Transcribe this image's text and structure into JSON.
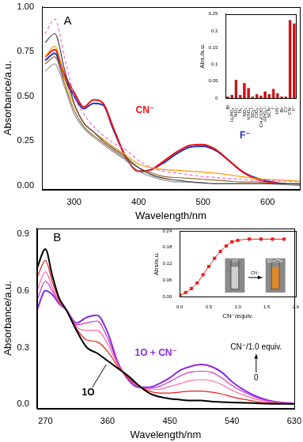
{
  "chart_data": [
    {
      "type": "line",
      "annotations": [
        "A"
      ],
      "xlabel": "Wavelength/nm",
      "ylabel": "Absorbance/a.u.",
      "x": [
        255,
        270,
        285,
        300,
        315,
        330,
        345,
        360,
        380,
        400,
        420,
        440,
        460,
        480,
        500,
        520,
        540,
        560,
        580,
        600,
        625,
        650
      ],
      "series": [
        {
          "color": "#ff66cc",
          "line_style": "dashed",
          "values": [
            0.85,
            0.93,
            0.72,
            0.5,
            0.4,
            0.33,
            0.28,
            0.24,
            0.2,
            0.14,
            0.1,
            0.08,
            0.07,
            0.06,
            0.05,
            0.045,
            0.04,
            0.035,
            0.03,
            0.03,
            0.025,
            0.02
          ]
        },
        {
          "color": "#444444",
          "values": [
            0.8,
            0.85,
            0.65,
            0.46,
            0.35,
            0.3,
            0.25,
            0.21,
            0.16,
            0.1,
            0.06,
            0.04,
            0.03,
            0.02,
            0.015,
            0.01,
            0.01,
            0.01,
            0.01,
            0.01,
            0.01,
            0.01
          ]
        },
        {
          "color": "#ff9900",
          "values": [
            0.72,
            0.78,
            0.6,
            0.45,
            0.35,
            0.3,
            0.26,
            0.22,
            0.17,
            0.12,
            0.1,
            0.09,
            0.085,
            0.08,
            0.075,
            0.07,
            0.06,
            0.05,
            0.04,
            0.035,
            0.03,
            0.025
          ]
        },
        {
          "color": "#996633",
          "values": [
            0.68,
            0.72,
            0.57,
            0.42,
            0.33,
            0.28,
            0.24,
            0.2,
            0.15,
            0.1,
            0.07,
            0.05,
            0.045,
            0.04,
            0.035,
            0.03,
            0.025,
            0.02,
            0.02,
            0.015,
            0.01,
            0.01
          ]
        },
        {
          "color": "#999999",
          "values": [
            0.64,
            0.68,
            0.55,
            0.4,
            0.32,
            0.27,
            0.23,
            0.19,
            0.14,
            0.08,
            0.05,
            0.03,
            0.02,
            0.02,
            0.015,
            0.01,
            0.01,
            0.01,
            0.01,
            0.01,
            0.005,
            0.005
          ]
        },
        {
          "name": "CN⁻",
          "color": "#ee1111",
          "values": [
            0.72,
            0.76,
            0.62,
            0.52,
            0.44,
            0.48,
            0.46,
            0.33,
            0.16,
            0.08,
            0.09,
            0.14,
            0.19,
            0.225,
            0.23,
            0.2,
            0.14,
            0.08,
            0.04,
            0.02,
            0.01,
            0.005
          ]
        },
        {
          "name": "F⁻",
          "color": "#2233bb",
          "values": [
            0.7,
            0.74,
            0.6,
            0.5,
            0.43,
            0.46,
            0.45,
            0.32,
            0.16,
            0.08,
            0.09,
            0.13,
            0.18,
            0.215,
            0.22,
            0.195,
            0.14,
            0.08,
            0.045,
            0.025,
            0.01,
            0.005
          ]
        }
      ],
      "xlim": [
        250,
        650
      ],
      "xticks": [
        300,
        400,
        500,
        600
      ],
      "ylim": [
        -0.02,
        1.0
      ],
      "yticks": [
        {
          "value": 0,
          "label": "0.00"
        },
        {
          "value": 0.25,
          "label": "0.25"
        },
        {
          "value": 0.5,
          "label": "0.50"
        },
        {
          "value": 0.75,
          "label": "0.75"
        },
        {
          "value": 1.0,
          "label": "1.00"
        }
      ],
      "grid": false
    },
    {
      "type": "bar",
      "ylabel": "Abs./a.u.",
      "categories": [
        "Bl",
        "H₂PO₄⁻",
        "NO₃⁻",
        "N₃⁻",
        "NO₂⁻",
        "HSO₄⁻",
        "SO₄²⁻",
        "ClO₄⁻",
        "CH₃COO⁻",
        "HPO₄²⁻",
        "SCN⁻",
        "I⁻",
        "HS⁻",
        "Br⁻",
        "Cl⁻",
        "CN⁻",
        "F⁻"
      ],
      "values": [
        0.005,
        0.01,
        0.055,
        0.01,
        0.045,
        0.03,
        0.005,
        0.012,
        0.008,
        0.02,
        0.012,
        0.028,
        0.015,
        0.005,
        0.005,
        0.232,
        0.222
      ],
      "color": "#dd0000",
      "ylim": [
        0,
        0.25
      ],
      "yticks": [
        0,
        0.05,
        0.1,
        0.15,
        0.2,
        0.25
      ],
      "grid": false
    },
    {
      "type": "line",
      "annotations": [
        "B",
        "CN⁻/1.0 equiv.",
        "0"
      ],
      "xlabel": "Wavelength/nm",
      "ylabel": "Absorbance/a.u.",
      "x": [
        258,
        270,
        280,
        290,
        300,
        315,
        330,
        345,
        360,
        375,
        390,
        405,
        420,
        435,
        450,
        465,
        480,
        495,
        510,
        525,
        540,
        560,
        580,
        600,
        630
      ],
      "series": [
        {
          "name": "1O",
          "color": "#000000",
          "values": [
            0.72,
            0.82,
            0.68,
            0.56,
            0.5,
            0.39,
            0.3,
            0.27,
            0.23,
            0.19,
            0.15,
            0.1,
            0.06,
            0.04,
            0.03,
            0.025,
            0.02,
            0.02,
            0.015,
            0.012,
            0.01,
            0.008,
            0.005,
            0.003,
            0.002
          ]
        },
        {
          "color": "#e0201e",
          "values": [
            0.67,
            0.76,
            0.65,
            0.55,
            0.5,
            0.4,
            0.34,
            0.33,
            0.28,
            0.2,
            0.14,
            0.1,
            0.07,
            0.06,
            0.06,
            0.065,
            0.07,
            0.07,
            0.065,
            0.055,
            0.04,
            0.025,
            0.012,
            0.006,
            0.003
          ]
        },
        {
          "color": "#ff66aa",
          "values": [
            0.6,
            0.7,
            0.62,
            0.54,
            0.5,
            0.41,
            0.39,
            0.39,
            0.32,
            0.21,
            0.14,
            0.095,
            0.08,
            0.08,
            0.095,
            0.11,
            0.125,
            0.13,
            0.125,
            0.105,
            0.075,
            0.045,
            0.022,
            0.01,
            0.004
          ]
        },
        {
          "color": "#cc33cc",
          "values": [
            0.55,
            0.65,
            0.6,
            0.535,
            0.5,
            0.42,
            0.43,
            0.44,
            0.35,
            0.215,
            0.135,
            0.092,
            0.085,
            0.095,
            0.12,
            0.15,
            0.17,
            0.175,
            0.17,
            0.14,
            0.1,
            0.06,
            0.03,
            0.013,
            0.005
          ]
        },
        {
          "name": "1O + CN⁻",
          "color": "#8a2be2",
          "values": [
            0.5,
            0.6,
            0.58,
            0.53,
            0.5,
            0.43,
            0.46,
            0.47,
            0.38,
            0.22,
            0.13,
            0.09,
            0.09,
            0.11,
            0.14,
            0.18,
            0.2,
            0.21,
            0.2,
            0.17,
            0.12,
            0.07,
            0.035,
            0.015,
            0.005
          ]
        }
      ],
      "xlim": [
        258,
        630
      ],
      "xticks": [
        270,
        360,
        450,
        540,
        630
      ],
      "ylim": [
        -0.02,
        0.93
      ],
      "yticks": [
        {
          "value": 0,
          "label": "0.0"
        },
        {
          "value": 0.3,
          "label": "0.3"
        },
        {
          "value": 0.6,
          "label": "0.6"
        },
        {
          "value": 0.9,
          "label": "0.9"
        }
      ],
      "grid": false
    },
    {
      "type": "line",
      "xlabel": "CN⁻/equiv.",
      "ylabel": "Abs/a.u.",
      "x": [
        0,
        0.1,
        0.2,
        0.3,
        0.4,
        0.5,
        0.6,
        0.7,
        0.8,
        0.9,
        1.0,
        1.2,
        1.4,
        1.6,
        1.8
      ],
      "series": [
        {
          "color": "#e8201e",
          "marker": "square",
          "values": [
            0.005,
            0.015,
            0.03,
            0.05,
            0.08,
            0.11,
            0.14,
            0.165,
            0.185,
            0.2,
            0.205,
            0.21,
            0.21,
            0.21,
            0.21
          ]
        }
      ],
      "photos": {
        "labels": [
          "1O",
          "1O+CN⁻"
        ],
        "arrow_label": "CN⁻"
      },
      "xlim": [
        0,
        2
      ],
      "xticks": [
        {
          "value": 0,
          "label": "0.0"
        },
        {
          "value": 0.5,
          "label": "0.5"
        },
        {
          "value": 1.0,
          "label": "1.0"
        },
        {
          "value": 1.5,
          "label": "1.5"
        },
        {
          "value": 2.0,
          "label": "2.0"
        }
      ],
      "ylim": [
        0,
        0.24
      ],
      "yticks": [
        {
          "value": 0,
          "label": "0.00"
        },
        {
          "value": 0.06,
          "label": "0.06"
        },
        {
          "value": 0.12,
          "label": "0.12"
        },
        {
          "value": 0.18,
          "label": "0.18"
        },
        {
          "value": 0.24,
          "label": "0.24"
        }
      ],
      "grid": false
    }
  ]
}
